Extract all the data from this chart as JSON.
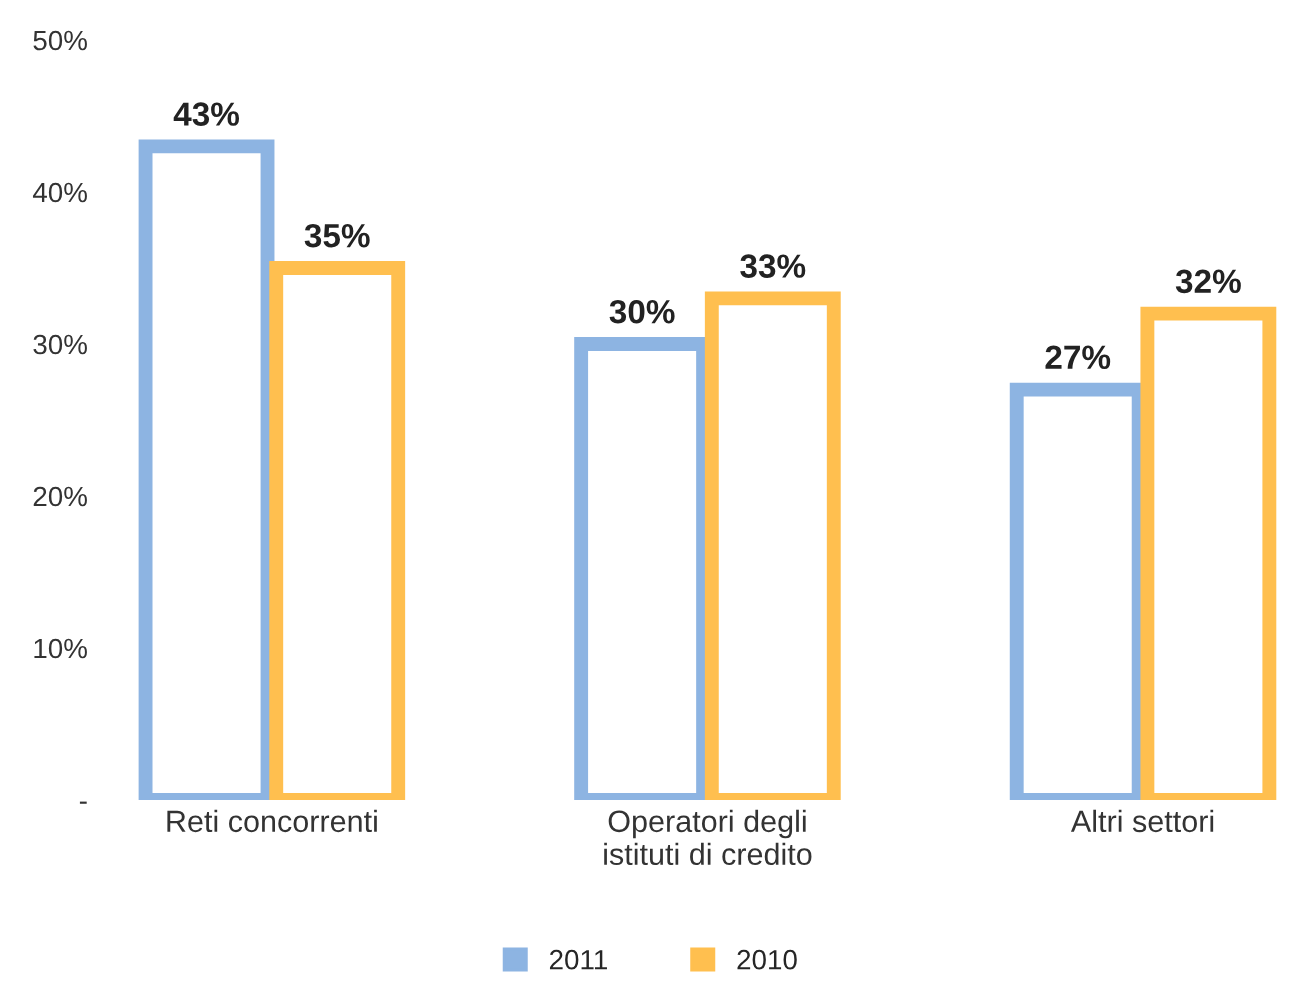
{
  "chart_data": {
    "type": "bar",
    "categories": [
      "Reti concorrenti",
      "Operatori degli\nistituti di credito",
      "Altri settori"
    ],
    "series": [
      {
        "name": "2011",
        "color": "#8db4e2",
        "values": [
          43,
          30,
          27
        ],
        "value_labels": [
          "43%",
          "30%",
          "27%"
        ]
      },
      {
        "name": "2010",
        "color": "#ffbf4f",
        "values": [
          35,
          33,
          32
        ],
        "value_labels": [
          "35%",
          "33%",
          "32%"
        ]
      }
    ],
    "ylim": [
      0,
      50
    ],
    "yticks": [
      {
        "value": 0,
        "label": "-"
      },
      {
        "value": 10,
        "label": "10%"
      },
      {
        "value": 20,
        "label": "20%"
      },
      {
        "value": 30,
        "label": "30%"
      },
      {
        "value": 40,
        "label": "40%"
      },
      {
        "value": 50,
        "label": "50%"
      }
    ],
    "grid": false,
    "legend": "bottom"
  }
}
